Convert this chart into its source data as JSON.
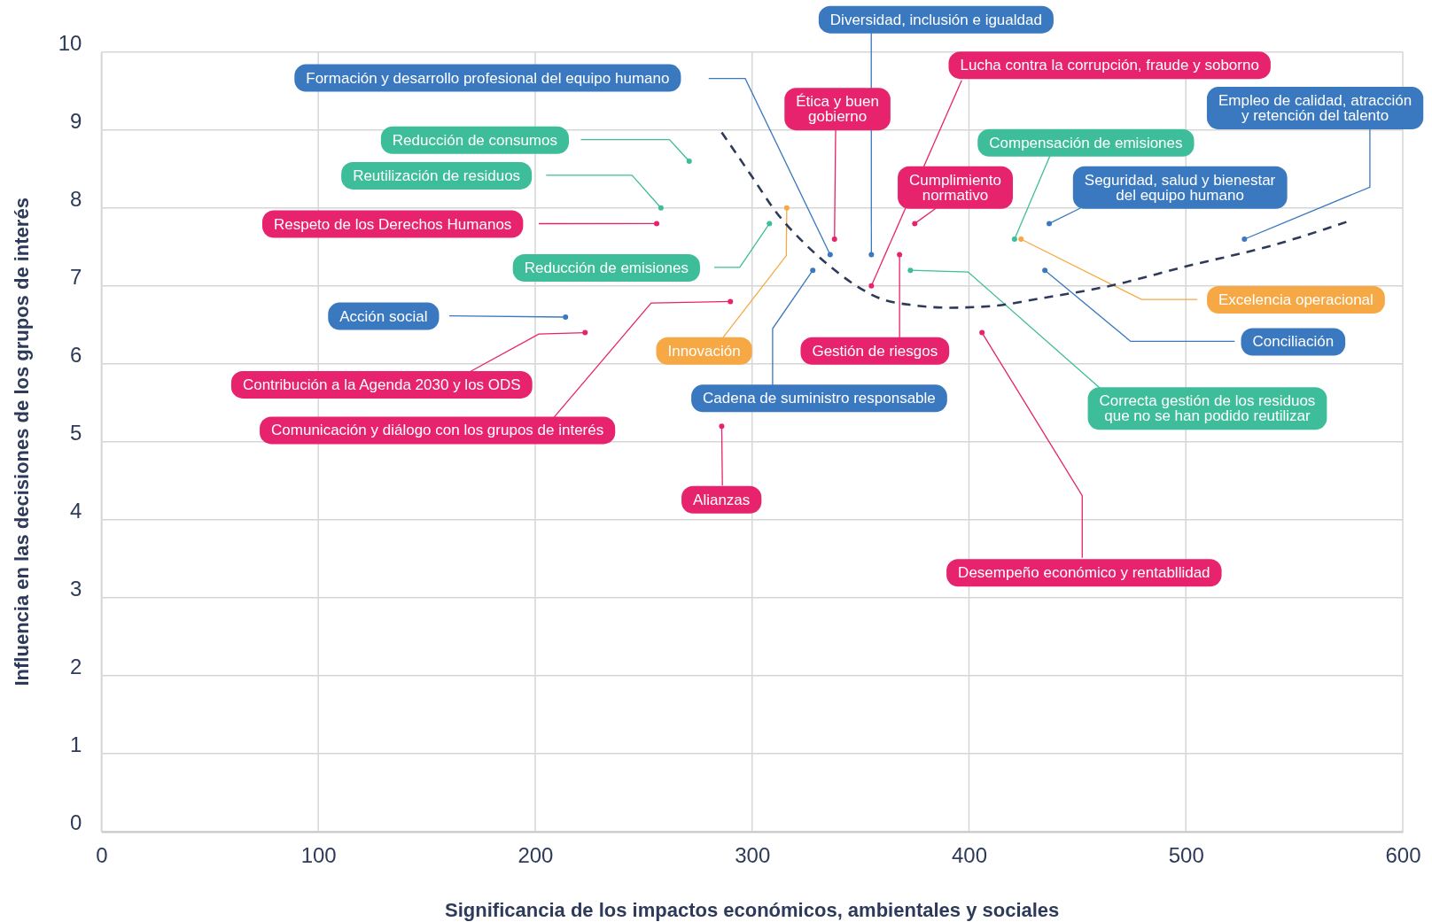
{
  "chart_data": {
    "type": "scatter",
    "xlabel": "Significancia de los impactos económicos, ambientales y sociales",
    "ylabel": "Influencia en las decisiones de los grupos de interés",
    "xlim": [
      0,
      600
    ],
    "ylim": [
      0,
      10
    ],
    "xticks": [
      0,
      100,
      200,
      300,
      400,
      500,
      600
    ],
    "yticks": [
      0,
      1,
      2,
      3,
      4,
      5,
      6,
      7,
      8,
      9,
      10
    ],
    "grid": true,
    "marker": "circle",
    "series": [
      {
        "name": "Formación y desarrollo profesional del equipo humano",
        "color": "#3a78bf",
        "x": [
          336
        ],
        "values": [
          7.4
        ]
      },
      {
        "name": "Diversidad, inclusión e igualdad",
        "color": "#3a78bf",
        "x": [
          355
        ],
        "values": [
          7.4
        ]
      },
      {
        "name": "Ética y buen gobierno",
        "color": "#e6236c",
        "x": [
          338
        ],
        "values": [
          7.6
        ]
      },
      {
        "name": "Lucha contra la corrupción, fraude y soborno",
        "color": "#e6236c",
        "x": [
          355
        ],
        "values": [
          7.0
        ]
      },
      {
        "name": "Cumplimiento normativo",
        "color": "#e6236c",
        "x": [
          375
        ],
        "values": [
          7.8
        ]
      },
      {
        "name": "Reducción de consumos",
        "color": "#3dbd99",
        "x": [
          271
        ],
        "values": [
          8.6
        ]
      },
      {
        "name": "Reutilización de residuos",
        "color": "#3dbd99",
        "x": [
          258
        ],
        "values": [
          8.0
        ]
      },
      {
        "name": "Respeto de los Derechos Humanos",
        "color": "#e6236c",
        "x": [
          256
        ],
        "values": [
          7.8
        ]
      },
      {
        "name": "Reducción de emisiones",
        "color": "#3dbd99",
        "x": [
          308
        ],
        "values": [
          7.8
        ]
      },
      {
        "name": "Innovación",
        "color": "#f6a845",
        "x": [
          316
        ],
        "values": [
          8.0
        ]
      },
      {
        "name": "Acción social",
        "color": "#3a78bf",
        "x": [
          214
        ],
        "values": [
          6.6
        ]
      },
      {
        "name": "Contribución a la Agenda 2030 y los ODS",
        "color": "#e6236c",
        "x": [
          223
        ],
        "values": [
          6.4
        ]
      },
      {
        "name": "Comunicación y diálogo con los grupos de interés",
        "color": "#e6236c",
        "x": [
          290
        ],
        "values": [
          6.8
        ]
      },
      {
        "name": "Cadena de suministro responsable",
        "color": "#3a78bf",
        "x": [
          328
        ],
        "values": [
          7.2
        ]
      },
      {
        "name": "Alianzas",
        "color": "#e6236c",
        "x": [
          286
        ],
        "values": [
          5.2
        ]
      },
      {
        "name": "Gestión de riesgos",
        "color": "#e6236c",
        "x": [
          368
        ],
        "values": [
          7.4
        ]
      },
      {
        "name": "Compensación de emisiones",
        "color": "#3dbd99",
        "x": [
          421
        ],
        "values": [
          7.6
        ]
      },
      {
        "name": "Seguridad, salud y bienestar del equipo humano",
        "color": "#3a78bf",
        "x": [
          437
        ],
        "values": [
          7.8
        ]
      },
      {
        "name": "Excelencia operacional",
        "color": "#f6a845",
        "x": [
          424
        ],
        "values": [
          7.6
        ]
      },
      {
        "name": "Empleo de calidad, atracción y retención del talento",
        "color": "#3a78bf",
        "x": [
          527
        ],
        "values": [
          7.6
        ]
      },
      {
        "name": "Conciliación",
        "color": "#3a78bf",
        "x": [
          435
        ],
        "values": [
          7.2
        ]
      },
      {
        "name": "Correcta gestión de los residuos que no se han podido reutilizar",
        "color": "#3dbd99",
        "x": [
          373
        ],
        "values": [
          7.2
        ]
      },
      {
        "name": "Desempeño económico y rentabllidad",
        "color": "#e6236c",
        "x": [
          406
        ],
        "values": [
          6.4
        ]
      },
      {
        "type": "line",
        "color": "#2e3a59",
        "line_style": "dashed",
        "marker": "none",
        "x": [
          286,
          300,
          311,
          324,
          336,
          347,
          358,
          375,
          391,
          410,
          433,
          465,
          500,
          540,
          574
        ],
        "values": [
          8.97,
          8.4,
          7.95,
          7.55,
          7.25,
          7.02,
          6.85,
          6.75,
          6.72,
          6.74,
          6.84,
          7.0,
          7.25,
          7.52,
          7.82
        ]
      }
    ]
  }
}
